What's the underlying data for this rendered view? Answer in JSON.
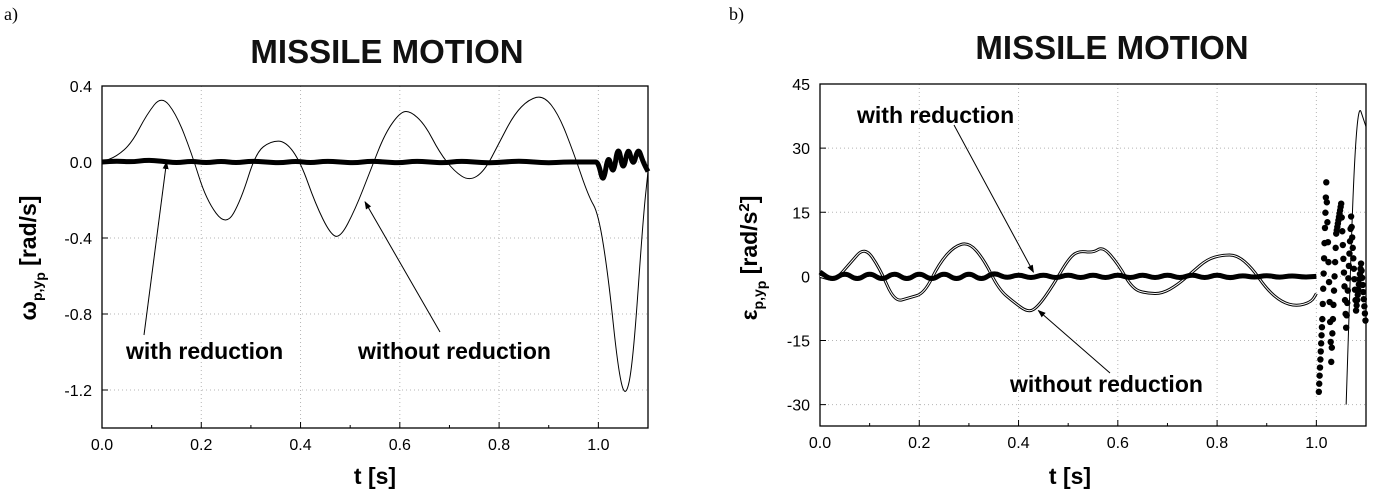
{
  "chart_data": [
    {
      "type": "line",
      "panel_label": "a)",
      "title": "MISSILE MOTION",
      "xlabel": "t [s]",
      "ylabel_main": "ω",
      "ylabel_sub": "p",
      "ylabel_sub2": "y",
      "ylabel_sub3": "p",
      "ylabel_unit": "[rad/s]",
      "xlim": [
        0.0,
        1.1
      ],
      "ylim": [
        -1.4,
        0.4
      ],
      "xticks": [
        0.0,
        0.2,
        0.4,
        0.6,
        0.8,
        1.0
      ],
      "xtick_labels": [
        "0.0",
        "0.2",
        "0.4",
        "0.6",
        "0.8",
        "1.0"
      ],
      "yticks": [
        0.4,
        0.0,
        -0.4,
        -0.8,
        -1.2
      ],
      "ytick_labels": [
        "0.4",
        "0.0",
        "-0.4",
        "-0.8",
        "-1.2"
      ],
      "grid": true,
      "annotations": [
        {
          "text": "with reduction",
          "point_to": [
            0.13,
            0.0
          ]
        },
        {
          "text": "without reduction",
          "point_to": [
            0.53,
            -0.21
          ]
        }
      ],
      "series": [
        {
          "style": "thin",
          "x": [
            0.0,
            0.03,
            0.06,
            0.09,
            0.12,
            0.15,
            0.18,
            0.21,
            0.25,
            0.28,
            0.31,
            0.34,
            0.37,
            0.4,
            0.43,
            0.46,
            0.48,
            0.51,
            0.54,
            0.57,
            0.6,
            0.62,
            0.65,
            0.68,
            0.71,
            0.74,
            0.77,
            0.8,
            0.83,
            0.86,
            0.89,
            0.92,
            0.95,
            0.98,
            1.0,
            1.02,
            1.04,
            1.055,
            1.07,
            1.09,
            1.1
          ],
          "y": [
            0.0,
            0.03,
            0.1,
            0.25,
            0.35,
            0.25,
            0.05,
            -0.2,
            -0.34,
            -0.2,
            0.05,
            0.11,
            0.11,
            0.0,
            -0.22,
            -0.38,
            -0.4,
            -0.25,
            -0.05,
            0.15,
            0.26,
            0.27,
            0.2,
            0.05,
            -0.05,
            -0.1,
            -0.05,
            0.1,
            0.25,
            0.33,
            0.35,
            0.25,
            0.05,
            -0.18,
            -0.27,
            -0.6,
            -1.1,
            -1.25,
            -1.05,
            -0.3,
            -0.05
          ]
        },
        {
          "style": "thick",
          "x": [
            0.0,
            0.03,
            0.06,
            0.09,
            0.12,
            0.15,
            0.18,
            0.21,
            0.24,
            0.27,
            0.3,
            0.33,
            0.36,
            0.39,
            0.42,
            0.45,
            0.48,
            0.51,
            0.54,
            0.57,
            0.6,
            0.63,
            0.66,
            0.69,
            0.72,
            0.75,
            0.78,
            0.81,
            0.84,
            0.87,
            0.9,
            0.93,
            0.96,
            0.99,
            1.0,
            1.01,
            1.02,
            1.03,
            1.04,
            1.05,
            1.06,
            1.07,
            1.08,
            1.09,
            1.1
          ],
          "y": [
            0.0,
            0.005,
            0.0,
            0.01,
            0.005,
            -0.005,
            0.005,
            -0.005,
            0.005,
            -0.005,
            0.005,
            0.0,
            -0.005,
            0.005,
            -0.005,
            0.005,
            0.0,
            -0.005,
            0.005,
            0.0,
            -0.005,
            0.005,
            0.0,
            -0.005,
            0.005,
            0.0,
            -0.005,
            0.0,
            0.005,
            0.0,
            -0.005,
            0.0,
            0.0,
            0.0,
            0.0,
            -0.12,
            0.05,
            -0.08,
            0.1,
            -0.06,
            0.09,
            -0.03,
            0.08,
            0.0,
            -0.05
          ]
        }
      ]
    },
    {
      "type": "line",
      "panel_label": "b)",
      "title": "MISSILE MOTION",
      "xlabel": "t [s]",
      "ylabel_main": "ε",
      "ylabel_sub": "p",
      "ylabel_sub2": "y",
      "ylabel_sub3": "p",
      "ylabel_unit": "[rad/s",
      "ylabel_sup": "2",
      "ylabel_close": "]",
      "xlim": [
        0.0,
        1.1
      ],
      "ylim": [
        -35,
        45
      ],
      "xticks": [
        0.0,
        0.2,
        0.4,
        0.6,
        0.8,
        1.0
      ],
      "xtick_labels": [
        "0.0",
        "0.2",
        "0.4",
        "0.6",
        "0.8",
        "1.0"
      ],
      "yticks": [
        45,
        30,
        15,
        0,
        -15,
        -30
      ],
      "ytick_labels": [
        "45",
        "30",
        "15",
        "0",
        "-15",
        "-30"
      ],
      "grid": true,
      "annotations": [
        {
          "text": "with reduction",
          "point_to": [
            0.43,
            1.0
          ]
        },
        {
          "text": "without reduction",
          "point_to": [
            0.44,
            -8.0
          ]
        }
      ],
      "series": [
        {
          "style": "double",
          "x": [
            0.0,
            0.03,
            0.06,
            0.09,
            0.12,
            0.15,
            0.18,
            0.21,
            0.24,
            0.27,
            0.3,
            0.33,
            0.36,
            0.39,
            0.42,
            0.44,
            0.47,
            0.5,
            0.52,
            0.55,
            0.57,
            0.6,
            0.63,
            0.66,
            0.69,
            0.72,
            0.75,
            0.78,
            0.81,
            0.84,
            0.87,
            0.9,
            0.93,
            0.96,
            0.99,
            1.0
          ],
          "y": [
            0.0,
            -1.0,
            3.0,
            7.0,
            2.0,
            -6.0,
            -5.0,
            -4.0,
            3.0,
            7.0,
            8.0,
            4.0,
            -3.0,
            -6.0,
            -8.5,
            -7.0,
            -2.0,
            4.0,
            6.0,
            5.5,
            7.0,
            3.0,
            -3.0,
            -4.0,
            -4.0,
            -2.0,
            1.0,
            4.0,
            5.0,
            5.0,
            2.0,
            -3.0,
            -6.0,
            -7.0,
            -6.0,
            -4.0
          ]
        },
        {
          "style": "thick",
          "x": [
            0.0,
            0.025,
            0.05,
            0.075,
            0.1,
            0.125,
            0.15,
            0.175,
            0.2,
            0.225,
            0.25,
            0.275,
            0.3,
            0.325,
            0.35,
            0.375,
            0.4,
            0.425,
            0.45,
            0.475,
            0.5,
            0.525,
            0.55,
            0.575,
            0.6,
            0.625,
            0.65,
            0.675,
            0.7,
            0.725,
            0.75,
            0.775,
            0.8,
            0.825,
            0.85,
            0.875,
            0.9,
            0.925,
            0.95,
            0.975,
            1.0
          ],
          "y": [
            1.0,
            -1.0,
            1.0,
            -1.0,
            1.0,
            -1.0,
            1.0,
            -1.0,
            1.0,
            -1.0,
            1.0,
            -1.0,
            1.0,
            -1.0,
            1.0,
            -0.5,
            0.5,
            -0.5,
            0.5,
            -0.5,
            0.5,
            -0.5,
            0.5,
            -0.5,
            0.5,
            -0.5,
            0.5,
            -0.5,
            0.5,
            -0.5,
            0.5,
            -0.5,
            0.5,
            -0.5,
            0.3,
            -0.3,
            0.3,
            -0.3,
            0.2,
            -0.2,
            0.0
          ]
        },
        {
          "style": "dots",
          "x": [
            1.005,
            1.012,
            1.02,
            1.03,
            1.04,
            1.05,
            1.06,
            1.07,
            1.08,
            1.09,
            1.1
          ],
          "y": [
            -27,
            -10,
            22,
            -20,
            10,
            17,
            -12,
            14,
            -8,
            3,
            -12
          ]
        },
        {
          "style": "thin",
          "x": [
            1.06,
            1.08,
            1.1
          ],
          "y": [
            -30,
            42,
            35
          ]
        }
      ]
    }
  ]
}
